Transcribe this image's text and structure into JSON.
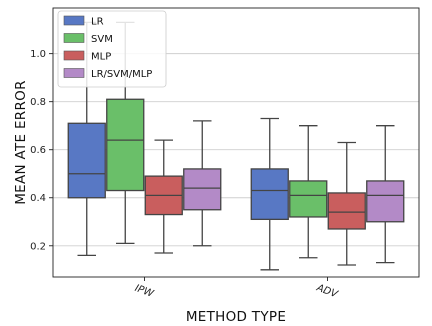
{
  "chart_data": {
    "type": "box",
    "xlabel": "METHOD TYPE",
    "ylabel": "MEAN ATE ERROR",
    "ylim": [
      0.07,
      1.19
    ],
    "yticks": [
      0.2,
      0.4,
      0.6,
      0.8,
      1.0
    ],
    "ytick_labels": [
      "0.2",
      "0.4",
      "0.6",
      "0.8",
      "1.0"
    ],
    "grid": "horizontal",
    "legend_position": "top-left",
    "categories": [
      "IPW",
      "ADV"
    ],
    "series": [
      {
        "name": "LR",
        "color": "#4C72B0",
        "fill": "#5878c4",
        "boxes": [
          {
            "whisker_low": 0.16,
            "q1": 0.4,
            "median": 0.5,
            "q3": 0.71,
            "whisker_high": 1.13
          },
          {
            "whisker_low": 0.1,
            "q1": 0.31,
            "median": 0.43,
            "q3": 0.52,
            "whisker_high": 0.73
          }
        ]
      },
      {
        "name": "SVM",
        "color": "#55A868",
        "fill": "#6abf69",
        "boxes": [
          {
            "whisker_low": 0.21,
            "q1": 0.43,
            "median": 0.64,
            "q3": 0.81,
            "whisker_high": 1.13
          },
          {
            "whisker_low": 0.15,
            "q1": 0.32,
            "median": 0.41,
            "q3": 0.47,
            "whisker_high": 0.7
          }
        ]
      },
      {
        "name": "MLP",
        "color": "#C44E52",
        "fill": "#c95e5e",
        "boxes": [
          {
            "whisker_low": 0.17,
            "q1": 0.33,
            "median": 0.41,
            "q3": 0.49,
            "whisker_high": 0.64
          },
          {
            "whisker_low": 0.12,
            "q1": 0.27,
            "median": 0.34,
            "q3": 0.42,
            "whisker_high": 0.63
          }
        ]
      },
      {
        "name": "LR/SVM/MLP",
        "color": "#8172B2",
        "fill": "#b38ac7",
        "boxes": [
          {
            "whisker_low": 0.2,
            "q1": 0.35,
            "median": 0.44,
            "q3": 0.52,
            "whisker_high": 0.72
          },
          {
            "whisker_low": 0.13,
            "q1": 0.3,
            "median": 0.41,
            "q3": 0.47,
            "whisker_high": 0.7
          }
        ]
      }
    ]
  }
}
